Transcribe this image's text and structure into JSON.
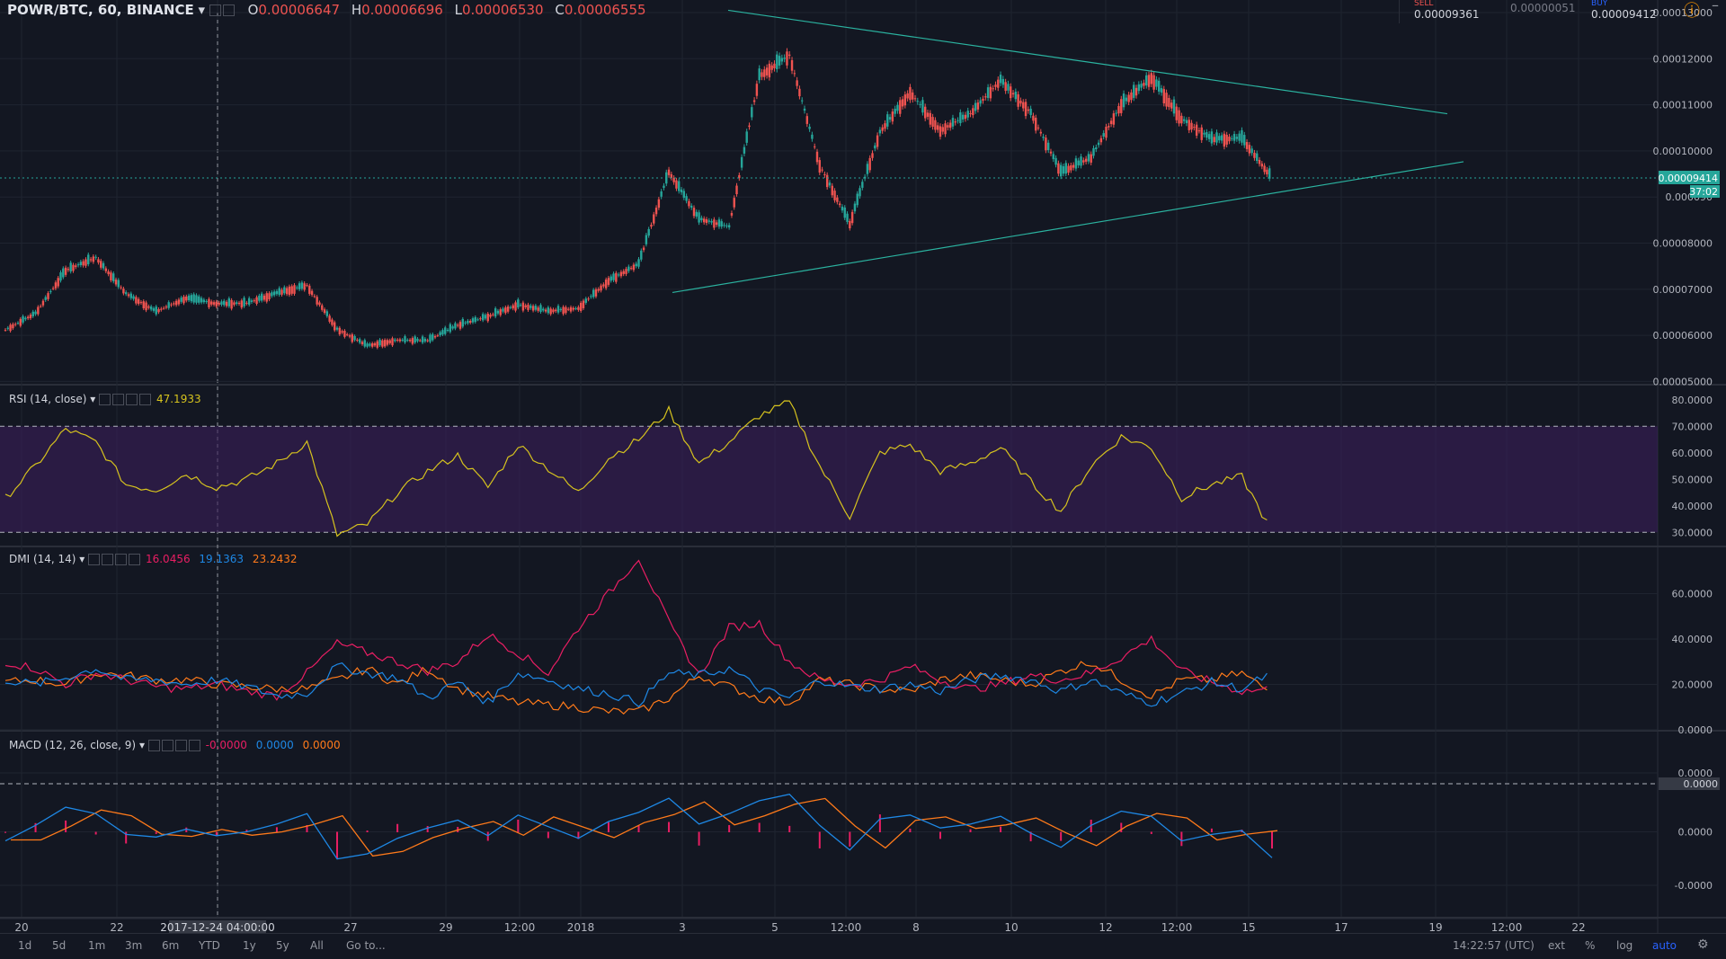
{
  "header": {
    "symbol": "POWR/BTC, 60, BINANCE",
    "o_label": "O",
    "o_value": "0.00006647",
    "h_label": "H",
    "h_value": "0.00006696",
    "l_label": "L",
    "l_value": "0.00006530",
    "c_label": "C",
    "c_value": "0.00006555"
  },
  "trade_panel": {
    "sell_label": "SELL",
    "sell_price": "0.00009361",
    "spread": "0.00000051",
    "buy_label": "BUY",
    "buy_price": "0.00009412"
  },
  "indicators": {
    "rsi_label": "RSI (14, close)",
    "rsi_value": "47.1933",
    "dmi_label": "DMI (14, 14)",
    "dmi_plus": "16.0456",
    "dmi_minus": "19.1363",
    "dmi_adx": "23.2432",
    "macd_label": "MACD (12, 26, close, 9)",
    "macd_hist": "-0.0000",
    "macd_line": "0.0000",
    "macd_signal": "0.0000"
  },
  "chart_data": {
    "type": "line",
    "x_ticks": [
      "20",
      "22",
      "2017-12-24 04:00:00",
      "27",
      "29",
      "12:00",
      "2018",
      "3",
      "5",
      "12:00",
      "8",
      "10",
      "12",
      "12:00",
      "15",
      "17",
      "19",
      "12:00",
      "22"
    ],
    "price_axis": [
      "0.00013000",
      "0.00012000",
      "0.00011000",
      "0.00010000",
      "0.000090",
      "0.00008000",
      "0.00007000",
      "0.00006000",
      "0.00005000"
    ],
    "last_price_label": "0.00009414",
    "countdown_label": "37:02",
    "ylim_price": [
      4.95e-05,
      0.00013
    ],
    "price_close": [
      6.12e-05,
      6.48e-05,
      7.41e-05,
      7.69e-05,
      6.91e-05,
      6.52e-05,
      6.81e-05,
      6.69e-05,
      6.7e-05,
      6.92e-05,
      7.09e-05,
      6.14e-05,
      5.78e-05,
      5.9e-05,
      5.89e-05,
      6.22e-05,
      6.41e-05,
      6.67e-05,
      6.53e-05,
      6.59e-05,
      7.19e-05,
      7.55e-05,
      9.55e-05,
      8.53e-05,
      8.36e-05,
      0.0001163,
      0.0001208,
      9.7e-05,
      8.42e-05,
      0.0001041,
      0.0001128,
      0.0001045,
      0.0001081,
      0.0001154,
      0.0001083,
      9.54e-05,
      9.86e-05,
      0.0001101,
      0.000116,
      0.000107,
      0.0001026,
      0.0001028,
      9.41e-05
    ],
    "triangle_upper": [
      [
        0.0001305,
        0.00010806
      ]
    ],
    "triangle_lower": [
      [
        6.93e-05,
        9.766e-05
      ]
    ],
    "rsi_axis": [
      "80.0000",
      "70.0000",
      "60.0000",
      "50.0000",
      "40.0000",
      "30.0000"
    ],
    "rsi_levels": [
      70,
      30
    ],
    "rsi": [
      43,
      55,
      69,
      64,
      48,
      46,
      52,
      47,
      50,
      56,
      64,
      29,
      33,
      45,
      53,
      59,
      47,
      63,
      54,
      45,
      58,
      65,
      76,
      56,
      64,
      74,
      79,
      55,
      36,
      60,
      63,
      53,
      56,
      62,
      49,
      38,
      55,
      66,
      62,
      43,
      48,
      51,
      30
    ],
    "dmi_axis": [
      "60.0000",
      "40.0000",
      "20.0000",
      "0.0000"
    ],
    "dmi_plus": [
      30,
      27,
      20,
      25,
      22,
      19,
      18,
      20,
      17,
      15,
      25,
      38,
      34,
      30,
      26,
      30,
      42,
      34,
      25,
      45,
      60,
      76,
      47,
      24,
      45,
      47,
      30,
      22,
      20,
      22,
      28,
      22,
      18,
      20,
      24,
      22,
      25,
      32,
      40,
      26,
      21,
      17,
      18
    ],
    "dmi_minus": [
      21,
      22,
      20,
      25,
      24,
      22,
      22,
      20,
      19,
      18,
      18,
      22,
      27,
      20,
      27,
      18,
      15,
      12,
      11,
      10,
      8,
      8,
      14,
      24,
      19,
      14,
      12,
      22,
      20,
      18,
      17,
      22,
      24,
      22,
      20,
      26,
      30,
      22,
      15,
      22,
      22,
      25,
      16
    ],
    "dmi_adx": [
      22,
      20,
      23,
      27,
      22,
      22,
      20,
      22,
      19,
      15,
      16,
      28,
      25,
      23,
      14,
      21,
      12,
      25,
      22,
      18,
      16,
      12,
      25,
      24,
      27,
      18,
      14,
      22,
      19,
      18,
      20,
      17,
      22,
      24,
      22,
      17,
      22,
      16,
      12,
      16,
      21,
      18,
      25
    ],
    "macd_axis": [
      "0.0000",
      "0.0000",
      "0.0000",
      "-0.0000"
    ],
    "macd_badge": "0.0000"
  },
  "bottom_bar": {
    "ranges": [
      "1d",
      "5d",
      "1m",
      "3m",
      "6m",
      "YTD",
      "1y",
      "5y",
      "All"
    ],
    "goto": "Go to...",
    "clock": "14:22:57 (UTC)",
    "ext": "ext",
    "pct": "%",
    "log": "log",
    "auto": "auto"
  },
  "colors": {
    "bg": "#131722",
    "up": "#26a69a",
    "down": "#ef5350",
    "trend": "#2bb3a0",
    "rsi": "#d6c31e",
    "rsi_band": "#3b1e5a",
    "dmi_plus": "#1e88e5",
    "dmi_minus": "#e91e63",
    "dmi_adx": "#ff7a1a",
    "macd_line": "#1e88e5",
    "macd_signal": "#ff7a1a",
    "macd_hist": "#e91e63"
  }
}
